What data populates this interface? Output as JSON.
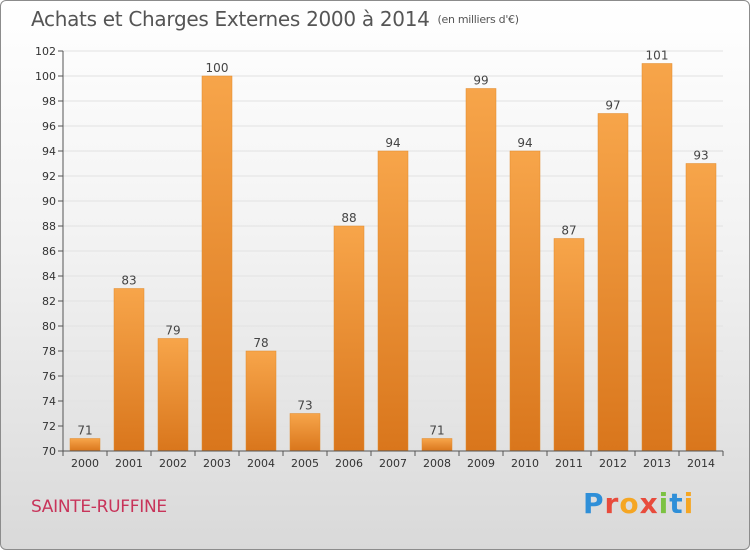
{
  "header": {
    "title": "Achats et Charges Externes 2000 à 2014",
    "unit": "(en milliers d'€)"
  },
  "footer": {
    "commune": "SAINTE-RUFFINE",
    "logo_text": "Proxiti"
  },
  "colors": {
    "bar_light": "#f7a54a",
    "bar_dark": "#d9761c",
    "grid": "#e2e2e2",
    "axis": "#555555",
    "commune": "#c8345a",
    "logo_letters": [
      "#2f8fd8",
      "#e84b3c",
      "#f5a623",
      "#e84b3c",
      "#7cc242",
      "#2f8fd8",
      "#f5a623"
    ]
  },
  "chart_data": {
    "type": "bar",
    "title": "Achats et Charges Externes 2000 à 2014",
    "subtitle": "(en milliers d'€)",
    "categories": [
      "2000",
      "2001",
      "2002",
      "2003",
      "2004",
      "2005",
      "2006",
      "2007",
      "2008",
      "2009",
      "2010",
      "2011",
      "2012",
      "2013",
      "2014"
    ],
    "values": [
      71,
      83,
      79,
      100,
      78,
      73,
      88,
      94,
      71,
      99,
      94,
      87,
      97,
      101,
      93
    ],
    "ylim": [
      70,
      102
    ],
    "yticks": [
      70,
      72,
      74,
      76,
      78,
      80,
      82,
      84,
      86,
      88,
      90,
      92,
      94,
      96,
      98,
      100,
      102
    ],
    "grid": true,
    "data_labels": true
  }
}
